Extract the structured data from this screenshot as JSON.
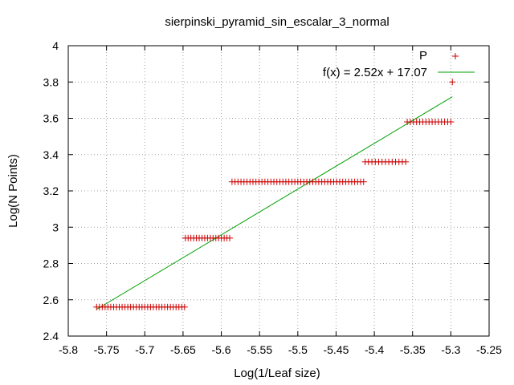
{
  "chart_data": {
    "type": "scatter",
    "title": "sierpinski_pyramid_sin_escalar_3_normal",
    "xlabel": "Log(1/Leaf size)",
    "ylabel": "Log(N Points)",
    "xlim": [
      -5.8,
      -5.25
    ],
    "ylim": [
      2.4,
      4.0
    ],
    "xticks": [
      -5.8,
      -5.75,
      -5.7,
      -5.65,
      -5.6,
      -5.55,
      -5.5,
      -5.45,
      -5.4,
      -5.35,
      -5.3,
      -5.25
    ],
    "yticks": [
      2.4,
      2.6,
      2.8,
      3.0,
      3.2,
      3.4,
      3.6,
      3.8,
      4.0
    ],
    "xtick_labels": [
      "-5.8",
      "-5.75",
      "-5.7",
      "-5.65",
      "-5.6",
      "-5.55",
      "-5.5",
      "-5.45",
      "-5.4",
      "-5.35",
      "-5.3",
      "-5.25"
    ],
    "ytick_labels": [
      "2.4",
      "2.6",
      "2.8",
      "3",
      "3.2",
      "3.4",
      "3.6",
      "3.8",
      "4"
    ],
    "grid": true,
    "legend_position": "top-right",
    "series": [
      {
        "name": "P",
        "kind": "points",
        "marker": "+",
        "color": "#cc0000",
        "groups": [
          {
            "y": 2.56,
            "x_start": -5.763,
            "x_end": -5.648,
            "count": 32
          },
          {
            "y": 2.94,
            "x_start": -5.647,
            "x_end": -5.589,
            "count": 17
          },
          {
            "y": 3.25,
            "x_start": -5.586,
            "x_end": -5.414,
            "count": 45
          },
          {
            "y": 3.36,
            "x_start": -5.412,
            "x_end": -5.359,
            "count": 13
          },
          {
            "y": 3.58,
            "x_start": -5.357,
            "x_end": -5.3,
            "count": 15
          },
          {
            "y": 3.8,
            "x_start": -5.298,
            "x_end": -5.298,
            "count": 1
          }
        ]
      },
      {
        "name": "f(x) = 2.52x + 17.07",
        "kind": "line",
        "color": "#00a000",
        "slope": 2.52,
        "intercept": 17.07,
        "x_range": [
          -5.763,
          -5.298
        ]
      }
    ]
  }
}
